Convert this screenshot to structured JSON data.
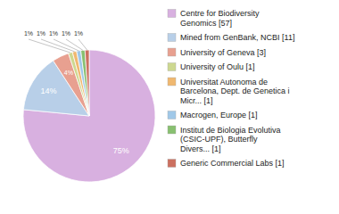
{
  "chart_data": {
    "type": "pie",
    "categories": [
      "Centre for Biodiversity\nGenomics [57]",
      "Mined from GenBank, NCBI [11]",
      "University of Geneva [3]",
      "University of Oulu [1]",
      "Universitat Autonoma de\nBarcelona, Dept. de Genetica i\nMicr... [1]",
      "Macrogen, Europe [1]",
      "Institut de Biologia Evolutiva\n(CSIC-UPF), Butterfly\nDivers... [1]",
      "Generic Commercial Labs [1]"
    ],
    "values": [
      75,
      14,
      4,
      1,
      1,
      1,
      1,
      1
    ],
    "value_labels": [
      "75%",
      "14%",
      "4%",
      "1%",
      "1%",
      "1%",
      "1%",
      "1%"
    ],
    "colors": [
      "#d8b0e0",
      "#b8cfe8",
      "#e8a090",
      "#cdd890",
      "#f0b870",
      "#a0c8e8",
      "#88c070",
      "#cc7060"
    ],
    "data_labels": true,
    "legend": "right"
  }
}
